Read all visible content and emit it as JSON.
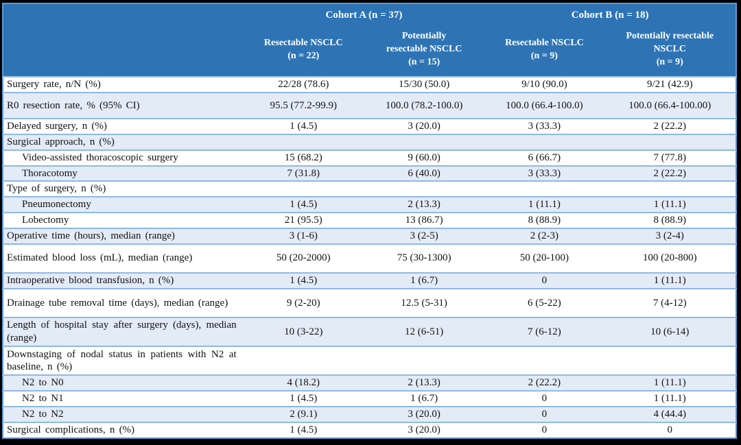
{
  "colors": {
    "header_bg": "#2E74B5",
    "header_text": "#FFFFFF",
    "band_row_bg": "#E3EBF7",
    "separator": "#8FB9E3",
    "header_border": "#5B9BD5",
    "frame": "#000000"
  },
  "header": {
    "groups": [
      {
        "label": "Cohort A (n = 37)"
      },
      {
        "label": "Cohort B (n = 18)"
      }
    ],
    "columns": [
      "Resectable NSCLC\n(n = 22)",
      "Potentially\nresectable NSCLC\n(n = 15)",
      "Resectable NSCLC\n(n = 9)",
      "Potentially resectable\nNSCLC\n(n = 9)"
    ]
  },
  "rows": [
    {
      "label": "Surgery rate, n/N (%)",
      "indent": false,
      "size": "normal",
      "values": [
        "22/28 (78.6)",
        "15/30 (50.0)",
        "9/10 (90.0)",
        "9/21 (42.9)"
      ]
    },
    {
      "label": "R0 resection rate, % (95% CI)",
      "indent": false,
      "size": "tall",
      "values": [
        "95.5 (77.2-99.9)",
        "100.0 (78.2-100.0)",
        "100.0 (66.4-100.0)",
        "100.0 (66.4-100.00)"
      ]
    },
    {
      "label": "Delayed surgery, n (%)",
      "indent": false,
      "size": "normal",
      "values": [
        "1 (4.5)",
        "3 (20.0)",
        "3 (33.3)",
        "2 (22.2)"
      ]
    },
    {
      "label": "Surgical approach, n (%)",
      "indent": false,
      "size": "normal",
      "values": [
        "",
        "",
        "",
        ""
      ]
    },
    {
      "label": "Video-assisted thoracoscopic surgery",
      "indent": true,
      "size": "normal",
      "values": [
        "15 (68.2)",
        "9 (60.0)",
        "6 (66.7)",
        "7 (77.8)"
      ]
    },
    {
      "label": "Thoracotomy",
      "indent": true,
      "size": "normal",
      "values": [
        "7 (31.8)",
        "6 (40.0)",
        "3 (33.3)",
        "2 (22.2)"
      ]
    },
    {
      "label": "Type of surgery, n (%)",
      "indent": false,
      "size": "normal",
      "values": [
        "",
        "",
        "",
        ""
      ]
    },
    {
      "label": "Pneumonectomy",
      "indent": true,
      "size": "normal",
      "values": [
        "1 (4.5)",
        "2 (13.3)",
        "1 (11.1)",
        "1 (11.1)"
      ]
    },
    {
      "label": "Lobectomy",
      "indent": true,
      "size": "normal",
      "values": [
        "21 (95.5)",
        "13 (86.7)",
        "8 (88.9)",
        "8 (88.9)"
      ]
    },
    {
      "label": "Operative time (hours), median (range)",
      "indent": false,
      "size": "normal",
      "values": [
        "3 (1-6)",
        "3 (2-5)",
        "2 (2-3)",
        "3 (2-4)"
      ]
    },
    {
      "label": "Estimated blood loss (mL), median (range)",
      "indent": false,
      "size": "tall2",
      "values": [
        "50 (20-2000)",
        "75 (30-1300)",
        "50 (20-100)",
        "100 (20-800)"
      ]
    },
    {
      "label": "Intraoperative blood transfusion, n (%)",
      "indent": false,
      "size": "normal",
      "values": [
        "1 (4.5)",
        "1 (6.7)",
        "0",
        "1 (11.1)"
      ]
    },
    {
      "label": "Drainage tube removal time (days), median (range)",
      "indent": false,
      "size": "tall2",
      "values": [
        "9 (2-20)",
        "12.5 (5-31)",
        "6 (5-22)",
        "7 (4-12)"
      ]
    },
    {
      "label": "Length of hospital stay after surgery (days), median (range)",
      "indent": false,
      "size": "tall2",
      "values": [
        "10 (3-22)",
        "12 (6-51)",
        "7 (6-12)",
        "10 (6-14)"
      ]
    },
    {
      "label": "Downstaging of nodal status in patients with N2 at baseline, n (%)",
      "indent": false,
      "size": "tall2",
      "values": [
        "",
        "",
        "",
        ""
      ]
    },
    {
      "label": "N2 to N0",
      "indent": true,
      "size": "normal",
      "values": [
        "4 (18.2)",
        "2 (13.3)",
        "2 (22.2)",
        "1 (11.1)"
      ]
    },
    {
      "label": "N2 to N1",
      "indent": true,
      "size": "normal",
      "values": [
        "1 (4.5)",
        "1 (6.7)",
        "0",
        "1 (11.1)"
      ]
    },
    {
      "label": "N2 to N2",
      "indent": true,
      "size": "normal",
      "values": [
        "2 (9.1)",
        "3 (20.0)",
        "0",
        "4 (44.4)"
      ]
    },
    {
      "label": "Surgical complications, n (%)",
      "indent": false,
      "size": "normal",
      "values": [
        "1 (4.5)",
        "3 (20.0)",
        "0",
        "0"
      ]
    }
  ]
}
